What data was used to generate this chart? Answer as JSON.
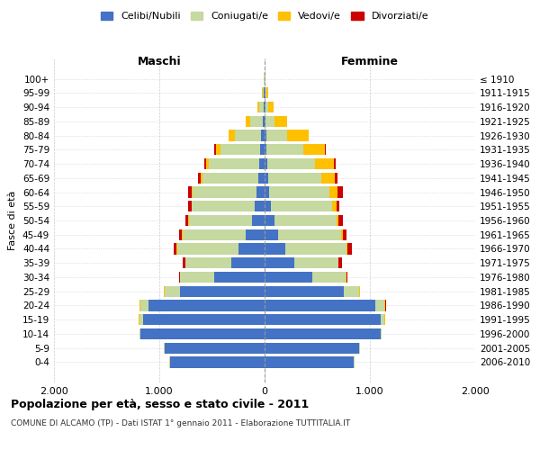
{
  "age_groups": [
    "100+",
    "95-99",
    "90-94",
    "85-89",
    "80-84",
    "75-79",
    "70-74",
    "65-69",
    "60-64",
    "55-59",
    "50-54",
    "45-49",
    "40-44",
    "35-39",
    "30-34",
    "25-29",
    "20-24",
    "15-19",
    "10-14",
    "5-9",
    "0-4"
  ],
  "birth_years": [
    "≤ 1910",
    "1911-1915",
    "1916-1920",
    "1921-1925",
    "1926-1930",
    "1931-1935",
    "1936-1940",
    "1941-1945",
    "1946-1950",
    "1951-1955",
    "1956-1960",
    "1961-1965",
    "1966-1970",
    "1971-1975",
    "1976-1980",
    "1981-1985",
    "1986-1990",
    "1991-1995",
    "1996-2000",
    "2001-2005",
    "2006-2010"
  ],
  "male_celibi": [
    2,
    5,
    10,
    20,
    30,
    40,
    50,
    60,
    80,
    90,
    120,
    180,
    250,
    320,
    480,
    800,
    1100,
    1150,
    1180,
    950,
    900
  ],
  "male_coniugati": [
    5,
    15,
    40,
    120,
    250,
    380,
    480,
    530,
    600,
    600,
    600,
    600,
    580,
    430,
    320,
    150,
    80,
    40,
    10,
    5,
    5
  ],
  "male_vedovi": [
    2,
    5,
    15,
    40,
    60,
    40,
    25,
    15,
    10,
    5,
    5,
    5,
    5,
    5,
    5,
    5,
    5,
    5,
    2,
    2,
    2
  ],
  "male_divorziati": [
    0,
    0,
    0,
    0,
    5,
    15,
    20,
    25,
    35,
    30,
    25,
    30,
    30,
    20,
    10,
    5,
    5,
    2,
    0,
    0,
    0
  ],
  "female_celibi": [
    2,
    5,
    8,
    12,
    15,
    20,
    25,
    30,
    45,
    60,
    90,
    130,
    200,
    280,
    450,
    750,
    1050,
    1100,
    1100,
    900,
    850
  ],
  "female_coniugati": [
    3,
    10,
    30,
    80,
    200,
    350,
    450,
    510,
    570,
    580,
    590,
    600,
    580,
    420,
    320,
    150,
    90,
    40,
    10,
    5,
    5
  ],
  "female_vedovi": [
    5,
    15,
    50,
    120,
    200,
    200,
    180,
    130,
    80,
    40,
    20,
    10,
    8,
    5,
    5,
    5,
    5,
    5,
    2,
    2,
    2
  ],
  "female_divorziati": [
    0,
    0,
    0,
    0,
    5,
    10,
    20,
    25,
    50,
    30,
    40,
    40,
    40,
    30,
    15,
    5,
    5,
    2,
    0,
    0,
    0
  ],
  "color_celibi": "#4472c4",
  "color_coniugati": "#c5d9a0",
  "color_vedovi": "#ffc000",
  "color_divorziati": "#cc0000",
  "title": "Popolazione per età, sesso e stato civile - 2011",
  "subtitle": "COMUNE DI ALCAMO (TP) - Dati ISTAT 1° gennaio 2011 - Elaborazione TUTTITALIA.IT",
  "xlabel_left": "Maschi",
  "xlabel_right": "Femmine",
  "ylabel_left": "Fasce di età",
  "xlim": 2000,
  "xticklabels": [
    "2.000",
    "1.000",
    "0",
    "1.000",
    "2.000"
  ],
  "legend_labels": [
    "Celibi/Nubili",
    "Coniugati/e",
    "Vedovi/e",
    "Divorziati/e"
  ],
  "background_color": "#ffffff",
  "grid_color": "#cccccc"
}
